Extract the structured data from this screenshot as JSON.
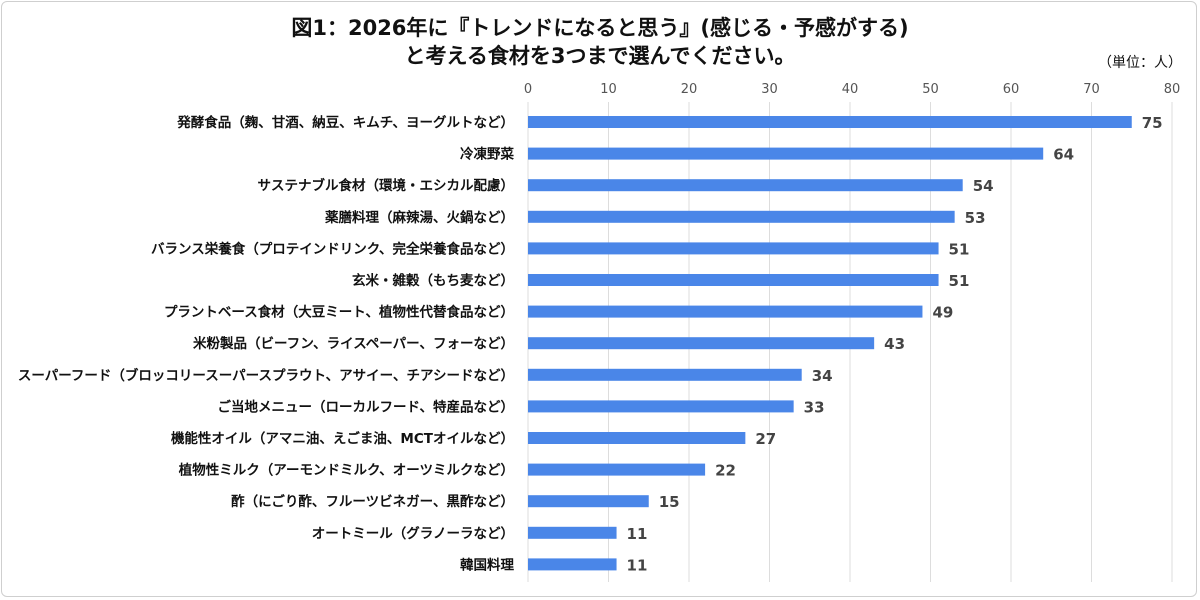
{
  "chart_data": {
    "type": "bar",
    "orientation": "horizontal",
    "title_lines": [
      "図1：2026年に『トレンドになると思う』(感じる・予感がする)",
      "と考える食材を3つまで選んでください。"
    ],
    "unit_label": "（単位：人）",
    "xlim": [
      0,
      80
    ],
    "x_ticks": [
      0,
      10,
      20,
      30,
      40,
      50,
      60,
      70,
      80
    ],
    "grid": true,
    "bar_color": "#4a86e8",
    "categories": [
      "発酵食品（麹、甘酒、納豆、キムチ、ヨーグルトなど）",
      "冷凍野菜",
      "サステナブル食材（環境・エシカル配慮）",
      "薬膳料理（麻辣湯、火鍋など）",
      "バランス栄養食（プロテインドリンク、完全栄養食品など）",
      "玄米・雑穀（もち麦など）",
      "プラントベース食材（大豆ミート、植物性代替食品など）",
      "米粉製品（ビーフン、ライスペーパー、フォーなど）",
      "スーパーフード（ブロッコリースーパースプラウト、アサイー、チアシードなど）",
      "ご当地メニュー（ローカルフード、特産品など）",
      "機能性オイル（アマニ油、えごま油、MCTオイルなど）",
      "植物性ミルク（アーモンドミルク、オーツミルクなど）",
      "酢（にごり酢、フルーツビネガー、黒酢など）",
      "オートミール（グラノーラなど）",
      "韓国料理"
    ],
    "values": [
      75,
      64,
      54,
      53,
      51,
      51,
      49,
      43,
      34,
      33,
      27,
      22,
      15,
      11,
      11
    ]
  }
}
